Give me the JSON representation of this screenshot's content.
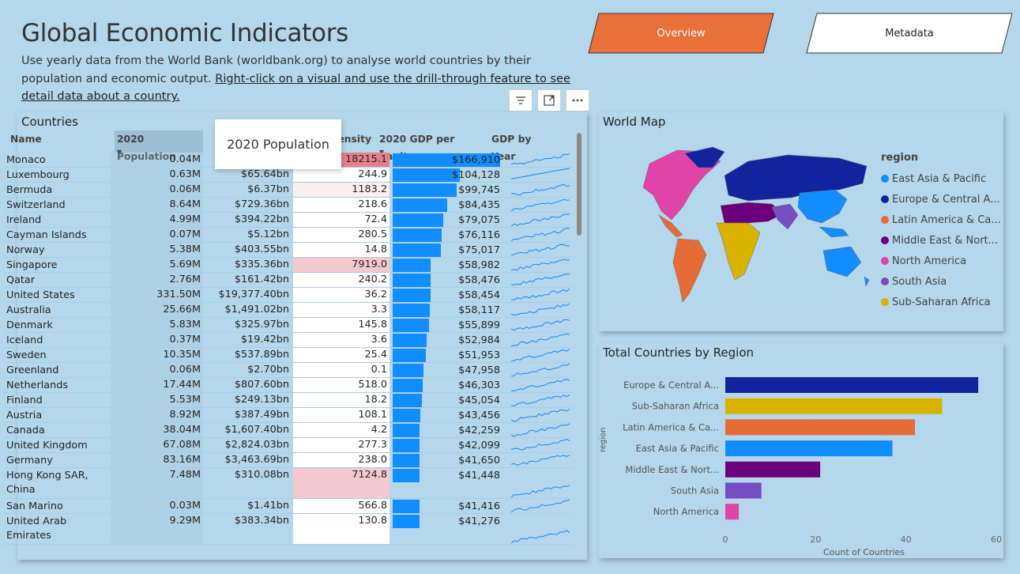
{
  "header": {
    "title": "Global Economic Indicators",
    "subtitle_plain": "Use yearly data from the World Bank (worldbank.org) to analyse world countries by their population and economic output. ",
    "subtitle_link": "Right-click on a visual and use the drill-through feature to see detail data about a country."
  },
  "nav": {
    "overview_label": "Overview",
    "metadata_label": "Metadata"
  },
  "colors": {
    "overview_button": "#e8703a",
    "header_sorted_bg": "#9cbfd4",
    "density_high": "#e8808b",
    "density_med": "#f4c8cf",
    "gdp_bar": "#118dff",
    "sparkline": "#118dff"
  },
  "table": {
    "title": "Countries",
    "toolbar_icons": [
      "filter-icon",
      "focus-mode-icon",
      "more-options-icon"
    ],
    "columns": [
      "Name",
      "2020 Population",
      "",
      "p.density",
      "2020 GDP per Capita",
      "GDP by Year"
    ],
    "tooltip": "2020 Population",
    "rows": [
      {
        "name": "Monaco",
        "pop": "0.04M",
        "gdp": "",
        "density": "18215.1",
        "gdppc": "$166,910",
        "gdppc_value": 166910,
        "density_value": 18215.1,
        "h": 1
      },
      {
        "name": "Luxembourg",
        "pop": "0.63M",
        "gdp": "$65.64bn",
        "density": "244.9",
        "gdppc": "$104,128",
        "gdppc_value": 104128,
        "density_value": 244.9,
        "h": 1
      },
      {
        "name": "Bermuda",
        "pop": "0.06M",
        "gdp": "$6.37bn",
        "density": "1183.2",
        "gdppc": "$99,745",
        "gdppc_value": 99745,
        "density_value": 1183.2,
        "h": 1
      },
      {
        "name": "Switzerland",
        "pop": "8.64M",
        "gdp": "$729.36bn",
        "density": "218.6",
        "gdppc": "$84,435",
        "gdppc_value": 84435,
        "density_value": 218.6,
        "h": 1
      },
      {
        "name": "Ireland",
        "pop": "4.99M",
        "gdp": "$394.22bn",
        "density": "72.4",
        "gdppc": "$79,075",
        "gdppc_value": 79075,
        "density_value": 72.4,
        "h": 1
      },
      {
        "name": "Cayman Islands",
        "pop": "0.07M",
        "gdp": "$5.12bn",
        "density": "280.5",
        "gdppc": "$76,116",
        "gdppc_value": 76116,
        "density_value": 280.5,
        "h": 1
      },
      {
        "name": "Norway",
        "pop": "5.38M",
        "gdp": "$403.55bn",
        "density": "14.8",
        "gdppc": "$75,017",
        "gdppc_value": 75017,
        "density_value": 14.8,
        "h": 1
      },
      {
        "name": "Singapore",
        "pop": "5.69M",
        "gdp": "$335.36bn",
        "density": "7919.0",
        "gdppc": "$58,982",
        "gdppc_value": 58982,
        "density_value": 7919.0,
        "h": 1
      },
      {
        "name": "Qatar",
        "pop": "2.76M",
        "gdp": "$161.42bn",
        "density": "240.2",
        "gdppc": "$58,476",
        "gdppc_value": 58476,
        "density_value": 240.2,
        "h": 1
      },
      {
        "name": "United States",
        "pop": "331.50M",
        "gdp": "$19,377.40bn",
        "density": "36.2",
        "gdppc": "$58,454",
        "gdppc_value": 58454,
        "density_value": 36.2,
        "h": 1
      },
      {
        "name": "Australia",
        "pop": "25.66M",
        "gdp": "$1,491.02bn",
        "density": "3.3",
        "gdppc": "$58,117",
        "gdppc_value": 58117,
        "density_value": 3.3,
        "h": 1
      },
      {
        "name": "Denmark",
        "pop": "5.83M",
        "gdp": "$325.97bn",
        "density": "145.8",
        "gdppc": "$55,899",
        "gdppc_value": 55899,
        "density_value": 145.8,
        "h": 1
      },
      {
        "name": "Iceland",
        "pop": "0.37M",
        "gdp": "$19.42bn",
        "density": "3.6",
        "gdppc": "$52,984",
        "gdppc_value": 52984,
        "density_value": 3.6,
        "h": 1
      },
      {
        "name": "Sweden",
        "pop": "10.35M",
        "gdp": "$537.89bn",
        "density": "25.4",
        "gdppc": "$51,953",
        "gdppc_value": 51953,
        "density_value": 25.4,
        "h": 1
      },
      {
        "name": "Greenland",
        "pop": "0.06M",
        "gdp": "$2.70bn",
        "density": "0.1",
        "gdppc": "$47,958",
        "gdppc_value": 47958,
        "density_value": 0.1,
        "h": 1
      },
      {
        "name": "Netherlands",
        "pop": "17.44M",
        "gdp": "$807.60bn",
        "density": "518.0",
        "gdppc": "$46,303",
        "gdppc_value": 46303,
        "density_value": 518.0,
        "h": 1
      },
      {
        "name": "Finland",
        "pop": "5.53M",
        "gdp": "$249.13bn",
        "density": "18.2",
        "gdppc": "$45,054",
        "gdppc_value": 45054,
        "density_value": 18.2,
        "h": 1
      },
      {
        "name": "Austria",
        "pop": "8.92M",
        "gdp": "$387.49bn",
        "density": "108.1",
        "gdppc": "$43,456",
        "gdppc_value": 43456,
        "density_value": 108.1,
        "h": 1
      },
      {
        "name": "Canada",
        "pop": "38.04M",
        "gdp": "$1,607.40bn",
        "density": "4.2",
        "gdppc": "$42,259",
        "gdppc_value": 42259,
        "density_value": 4.2,
        "h": 1
      },
      {
        "name": "United Kingdom",
        "pop": "67.08M",
        "gdp": "$2,824.03bn",
        "density": "277.3",
        "gdppc": "$42,099",
        "gdppc_value": 42099,
        "density_value": 277.3,
        "h": 1
      },
      {
        "name": "Germany",
        "pop": "83.16M",
        "gdp": "$3,463.69bn",
        "density": "238.0",
        "gdppc": "$41,650",
        "gdppc_value": 41650,
        "density_value": 238.0,
        "h": 1
      },
      {
        "name": "Hong Kong SAR, China",
        "pop": "7.48M",
        "gdp": "$310.08bn",
        "density": "7124.8",
        "gdppc": "$41,448",
        "gdppc_value": 41448,
        "density_value": 7124.8,
        "h": 2
      },
      {
        "name": "San Marino",
        "pop": "0.03M",
        "gdp": "$1.41bn",
        "density": "566.8",
        "gdppc": "$41,416",
        "gdppc_value": 41416,
        "density_value": 566.8,
        "h": 1
      },
      {
        "name": "United Arab Emirates",
        "pop": "9.29M",
        "gdp": "$383.34bn",
        "density": "130.8",
        "gdppc": "$41,276",
        "gdppc_value": 41276,
        "density_value": 130.8,
        "h": 2
      }
    ]
  },
  "map": {
    "title": "World Map",
    "legend_title": "region",
    "legend": [
      {
        "label": "East Asia & Pacific",
        "color": "#118dff"
      },
      {
        "label": "Europe & Central A...",
        "color": "#12239e"
      },
      {
        "label": "Latin America & Ca...",
        "color": "#e66c37"
      },
      {
        "label": "Middle East & Nort...",
        "color": "#6b007b"
      },
      {
        "label": "North America",
        "color": "#e044a7"
      },
      {
        "label": "South Asia",
        "color": "#744ec2"
      },
      {
        "label": "Sub-Saharan Africa",
        "color": "#d9b300"
      }
    ]
  },
  "chart_data": {
    "type": "bar",
    "title": "Total Countries by Region",
    "xlabel": "Count of Countries",
    "ylabel": "region",
    "categories": [
      "Europe & Central A...",
      "Sub-Saharan Africa",
      "Latin America & Ca...",
      "East Asia & Pacific",
      "Middle East & Nort...",
      "South Asia",
      "North America"
    ],
    "values": [
      56,
      48,
      42,
      37,
      21,
      8,
      3
    ],
    "colors": [
      "#12239e",
      "#d9b300",
      "#e66c37",
      "#118dff",
      "#6b007b",
      "#744ec2",
      "#e044a7"
    ],
    "xlim": [
      0,
      60
    ],
    "xticks": [
      "0",
      "20",
      "40",
      "60"
    ]
  }
}
